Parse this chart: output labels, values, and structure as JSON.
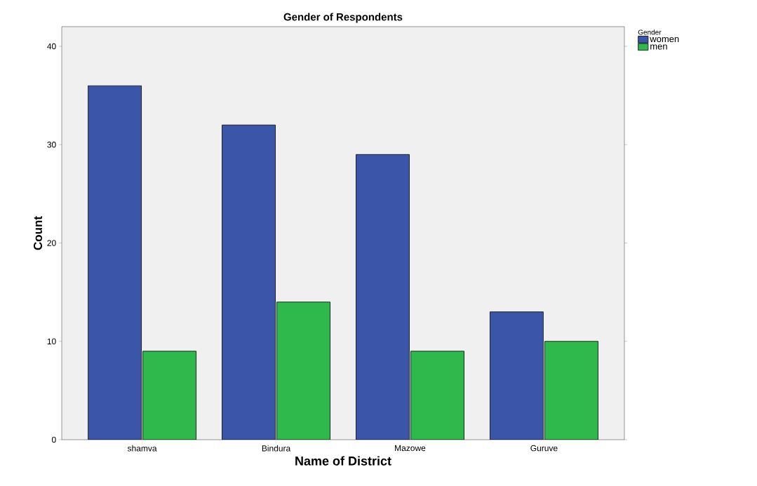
{
  "chart_data": {
    "type": "bar",
    "title": "Gender of Respondents",
    "xlabel": "Name of District",
    "ylabel": "Count",
    "legend_title": "Gender",
    "categories": [
      "shamva",
      "Bindura",
      "Mazowe",
      "Guruve"
    ],
    "series": [
      {
        "name": "women",
        "color": "#3b55a8",
        "values": [
          36,
          32,
          29,
          13
        ]
      },
      {
        "name": "men",
        "color": "#2fb84c",
        "values": [
          9,
          14,
          9,
          10
        ]
      }
    ],
    "ylim": [
      0,
      42
    ],
    "yticks": [
      0,
      10,
      20,
      30,
      40
    ],
    "grid": false,
    "legend": "top right"
  }
}
